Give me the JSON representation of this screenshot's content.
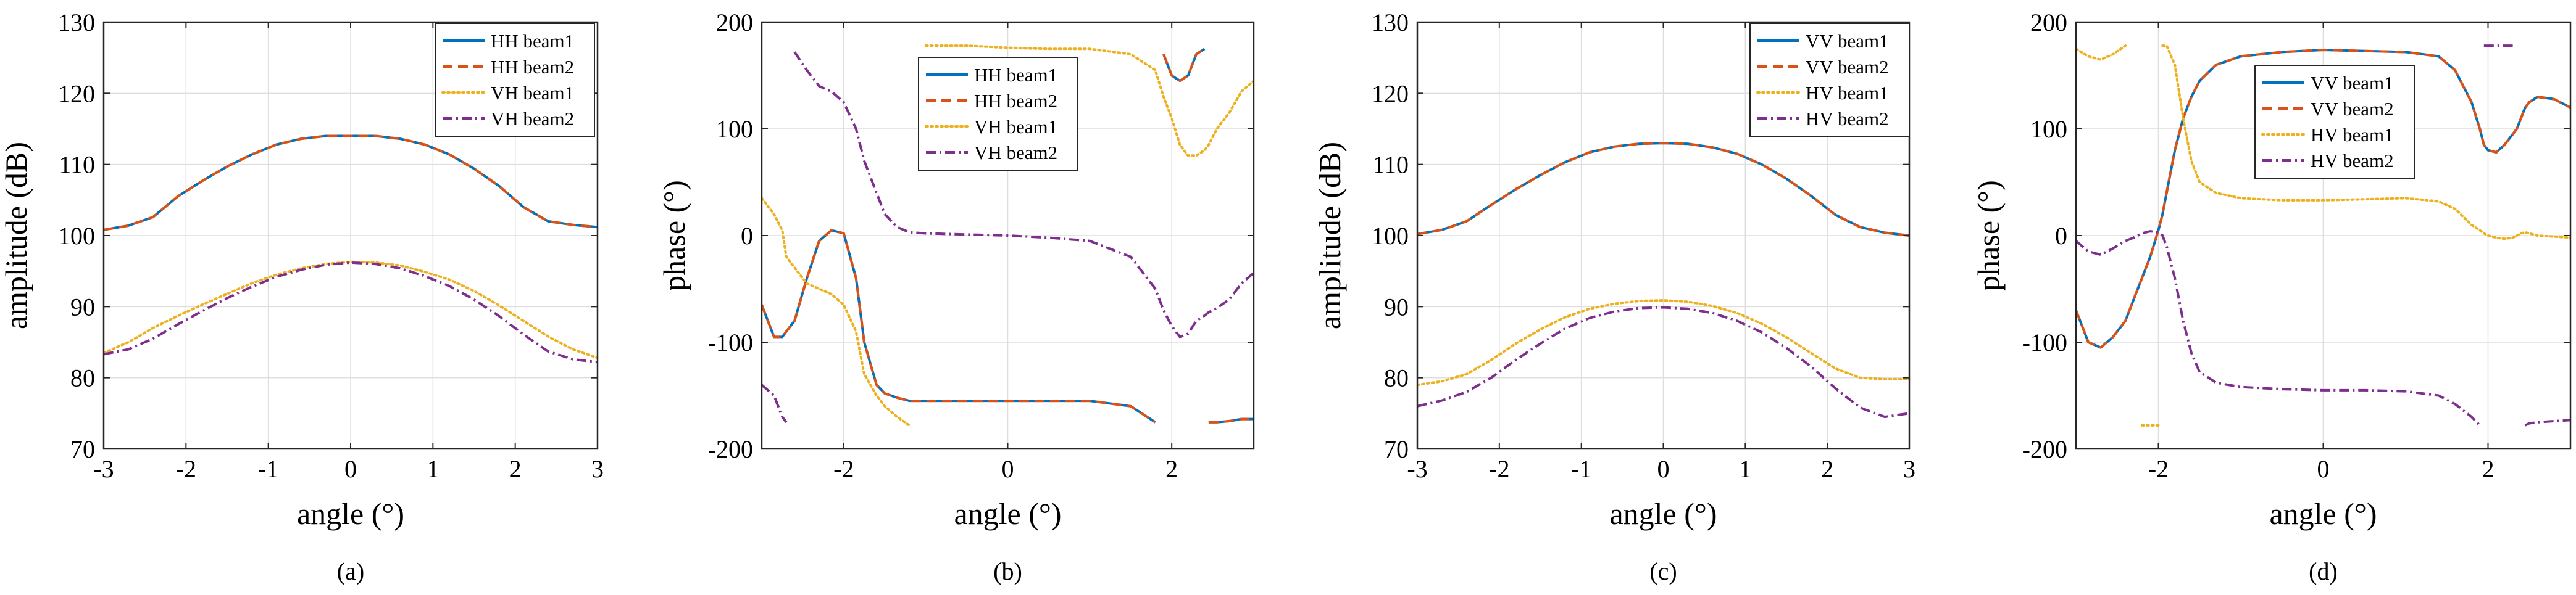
{
  "figure": {
    "background": "#ffffff",
    "grid_color": "#dedede"
  },
  "chart_data": [
    {
      "type": "line",
      "panel_label": "(a)",
      "xlabel": "angle (°)",
      "ylabel": "amplitude (dB)",
      "xlim": [
        -3,
        3
      ],
      "ylim": [
        70,
        130
      ],
      "xticks": [
        -3,
        -2,
        -1,
        0,
        1,
        2,
        3
      ],
      "yticks": [
        70,
        80,
        90,
        100,
        110,
        120,
        130
      ],
      "legend_position": "top-right",
      "grid": true,
      "x": [
        -3.0,
        -2.7,
        -2.4,
        -2.1,
        -1.8,
        -1.5,
        -1.2,
        -0.9,
        -0.6,
        -0.3,
        0.0,
        0.3,
        0.6,
        0.9,
        1.2,
        1.5,
        1.8,
        2.1,
        2.4,
        2.7,
        3.0
      ],
      "series": [
        {
          "name": "HH beam1",
          "color": "#0072BD",
          "dash": "solid",
          "values": [
            100.8,
            101.4,
            102.6,
            105.5,
            107.7,
            109.7,
            111.4,
            112.8,
            113.6,
            114.0,
            114.0,
            114.0,
            113.6,
            112.8,
            111.4,
            109.4,
            107.0,
            104.0,
            102.0,
            101.5,
            101.2
          ]
        },
        {
          "name": "HH beam2",
          "color": "#D95319",
          "dash": "dashed",
          "values": [
            100.8,
            101.4,
            102.6,
            105.5,
            107.7,
            109.7,
            111.4,
            112.8,
            113.6,
            114.0,
            114.0,
            114.0,
            113.6,
            112.8,
            111.4,
            109.4,
            107.0,
            104.0,
            102.0,
            101.5,
            101.2
          ]
        },
        {
          "name": "VH beam1",
          "color": "#EDB120",
          "dash": "dotted",
          "values": [
            83.5,
            85.0,
            87.0,
            88.7,
            90.3,
            91.8,
            93.3,
            94.5,
            95.4,
            96.0,
            96.3,
            96.2,
            95.8,
            94.9,
            93.8,
            92.2,
            90.2,
            88.0,
            85.8,
            84.0,
            82.8
          ]
        },
        {
          "name": "VH beam2",
          "color": "#7E2F8E",
          "dash": "dashdot",
          "values": [
            83.3,
            84.0,
            85.5,
            87.5,
            89.4,
            91.2,
            92.8,
            94.2,
            95.2,
            95.9,
            96.2,
            96.0,
            95.4,
            94.3,
            92.9,
            91.0,
            88.7,
            86.1,
            83.7,
            82.6,
            82.2
          ]
        }
      ]
    },
    {
      "type": "line",
      "panel_label": "(b)",
      "xlabel": "angle (°)",
      "ylabel": "phase (°)",
      "xlim": [
        -3,
        3
      ],
      "ylim": [
        -200,
        200
      ],
      "xticks": [
        -2,
        0,
        2
      ],
      "yticks": [
        -200,
        -100,
        0,
        100,
        200
      ],
      "legend_position": "top-center",
      "grid": true,
      "x": [
        -3.0,
        -2.85,
        -2.75,
        -2.7,
        -2.6,
        -2.45,
        -2.3,
        -2.15,
        -2.0,
        -1.85,
        -1.75,
        -1.6,
        -1.5,
        -1.35,
        -1.2,
        -1.0,
        -0.5,
        0.0,
        0.5,
        1.0,
        1.5,
        1.8,
        1.9,
        2.0,
        2.1,
        2.2,
        2.3,
        2.4,
        2.45,
        2.55,
        2.7,
        2.85,
        3.0
      ],
      "series": [
        {
          "name": "HH beam1",
          "color": "#0072BD",
          "dash": "solid",
          "values": [
            -65,
            -95,
            -95,
            -90,
            -80,
            -40,
            -5,
            5,
            2,
            -40,
            -100,
            -140,
            -148,
            -152,
            -155,
            -155,
            -155,
            -155,
            -155,
            -155,
            -160,
            -175,
            170,
            150,
            145,
            150,
            170,
            175,
            -175,
            -175,
            -174,
            -172,
            -172
          ]
        },
        {
          "name": "HH beam2",
          "color": "#D95319",
          "dash": "dashed",
          "values": [
            -65,
            -95,
            -95,
            -90,
            -80,
            -40,
            -5,
            5,
            2,
            -40,
            -100,
            -140,
            -148,
            -152,
            -155,
            -155,
            -155,
            -155,
            -155,
            -155,
            -160,
            -175,
            170,
            150,
            145,
            150,
            170,
            175,
            -175,
            -175,
            -174,
            -172,
            -172
          ]
        },
        {
          "name": "VH beam1",
          "color": "#EDB120",
          "dash": "dotted",
          "values": [
            35,
            20,
            5,
            -20,
            -30,
            -45,
            -50,
            -55,
            -65,
            -90,
            -130,
            -150,
            -160,
            -170,
            -178,
            178,
            178,
            176,
            175,
            175,
            170,
            155,
            130,
            110,
            85,
            75,
            75,
            80,
            85,
            100,
            115,
            135,
            145
          ]
        },
        {
          "name": "VH beam2",
          "color": "#7E2F8E",
          "dash": "dashdot",
          "values": [
            -140,
            -150,
            -170,
            -175,
            172,
            155,
            140,
            135,
            125,
            100,
            70,
            40,
            20,
            8,
            3,
            2,
            1,
            0,
            -2,
            -5,
            -20,
            -50,
            -70,
            -85,
            -95,
            -92,
            -80,
            -75,
            -72,
            -68,
            -60,
            -45,
            -35
          ]
        }
      ]
    },
    {
      "type": "line",
      "panel_label": "(c)",
      "xlabel": "angle (°)",
      "ylabel": "amplitude (dB)",
      "xlim": [
        -3,
        3
      ],
      "ylim": [
        70,
        130
      ],
      "xticks": [
        -3,
        -2,
        -1,
        0,
        1,
        2,
        3
      ],
      "yticks": [
        70,
        80,
        90,
        100,
        110,
        120,
        130
      ],
      "legend_position": "top-right",
      "grid": true,
      "x": [
        -3.0,
        -2.7,
        -2.4,
        -2.1,
        -1.8,
        -1.5,
        -1.2,
        -0.9,
        -0.6,
        -0.3,
        0.0,
        0.3,
        0.6,
        0.9,
        1.2,
        1.5,
        1.8,
        2.1,
        2.4,
        2.7,
        3.0
      ],
      "series": [
        {
          "name": "VV beam1",
          "color": "#0072BD",
          "dash": "solid",
          "values": [
            100.2,
            100.8,
            102.0,
            104.3,
            106.5,
            108.5,
            110.3,
            111.7,
            112.5,
            112.9,
            113.0,
            112.9,
            112.4,
            111.5,
            110.0,
            108.0,
            105.6,
            102.9,
            101.2,
            100.4,
            100.0
          ]
        },
        {
          "name": "VV beam2",
          "color": "#D95319",
          "dash": "dashed",
          "values": [
            100.2,
            100.8,
            102.0,
            104.3,
            106.5,
            108.5,
            110.3,
            111.7,
            112.5,
            112.9,
            113.0,
            112.9,
            112.4,
            111.5,
            110.0,
            108.0,
            105.6,
            102.9,
            101.2,
            100.4,
            100.0
          ]
        },
        {
          "name": "HV beam1",
          "color": "#EDB120",
          "dash": "dotted",
          "values": [
            79.0,
            79.5,
            80.5,
            82.5,
            84.8,
            86.8,
            88.5,
            89.7,
            90.4,
            90.8,
            90.9,
            90.7,
            90.1,
            89.1,
            87.6,
            85.7,
            83.5,
            81.3,
            80.0,
            79.8,
            79.8
          ]
        },
        {
          "name": "HV beam2",
          "color": "#7E2F8E",
          "dash": "dashdot",
          "values": [
            76.0,
            76.8,
            78.0,
            80.0,
            82.5,
            84.8,
            86.9,
            88.4,
            89.3,
            89.8,
            89.9,
            89.7,
            89.1,
            88.0,
            86.4,
            84.2,
            81.6,
            78.5,
            75.8,
            74.5,
            75.0
          ]
        }
      ]
    },
    {
      "type": "line",
      "panel_label": "(d)",
      "xlabel": "angle (°)",
      "ylabel": "phase (°)",
      "xlim": [
        -3,
        3
      ],
      "ylim": [
        -200,
        200
      ],
      "xticks": [
        -2,
        0,
        2
      ],
      "yticks": [
        -200,
        -100,
        0,
        100,
        200
      ],
      "legend_position": "top-center",
      "grid": true,
      "x": [
        -3.0,
        -2.85,
        -2.7,
        -2.55,
        -2.4,
        -2.3,
        -2.25,
        -2.2,
        -2.1,
        -2.0,
        -1.95,
        -1.9,
        -1.8,
        -1.7,
        -1.6,
        -1.5,
        -1.3,
        -1.0,
        -0.5,
        0.0,
        0.5,
        1.0,
        1.4,
        1.6,
        1.8,
        1.9,
        1.95,
        2.0,
        2.1,
        2.2,
        2.3,
        2.35,
        2.4,
        2.45,
        2.5,
        2.6,
        2.8,
        3.0
      ],
      "series": [
        {
          "name": "VV beam1",
          "color": "#0072BD",
          "dash": "solid",
          "values": [
            -70,
            -100,
            -105,
            -95,
            -80,
            -60,
            -50,
            -40,
            -20,
            5,
            20,
            40,
            80,
            110,
            130,
            145,
            160,
            168,
            172,
            174,
            173,
            172,
            168,
            155,
            125,
            100,
            85,
            80,
            78,
            85,
            95,
            100,
            110,
            120,
            125,
            130,
            128,
            120
          ]
        },
        {
          "name": "VV beam2",
          "color": "#D95319",
          "dash": "dashed",
          "values": [
            -70,
            -100,
            -105,
            -95,
            -80,
            -60,
            -50,
            -40,
            -20,
            5,
            20,
            40,
            80,
            110,
            130,
            145,
            160,
            168,
            172,
            174,
            173,
            172,
            168,
            155,
            125,
            100,
            85,
            80,
            78,
            85,
            95,
            100,
            110,
            120,
            125,
            130,
            128,
            120
          ]
        },
        {
          "name": "HV beam1",
          "color": "#EDB120",
          "dash": "dotted",
          "values": [
            175,
            168,
            165,
            170,
            178,
            -178,
            178,
            -178,
            -178,
            -178,
            178,
            178,
            160,
            110,
            70,
            50,
            40,
            35,
            33,
            33,
            34,
            35,
            32,
            25,
            10,
            5,
            2,
            0,
            -2,
            -3,
            -2,
            0,
            2,
            3,
            2,
            0,
            -1,
            -2
          ]
        },
        {
          "name": "HV beam2",
          "color": "#7E2F8E",
          "dash": "dashdot",
          "values": [
            -5,
            -15,
            -18,
            -12,
            -5,
            -2,
            0,
            2,
            4,
            3,
            0,
            -10,
            -40,
            -80,
            -110,
            -128,
            -138,
            -142,
            -144,
            -145,
            -145,
            -146,
            -150,
            -158,
            -170,
            -178,
            178,
            178,
            178,
            178,
            178,
            -178,
            178,
            -178,
            -176,
            -175,
            -174,
            -173
          ]
        }
      ]
    }
  ]
}
